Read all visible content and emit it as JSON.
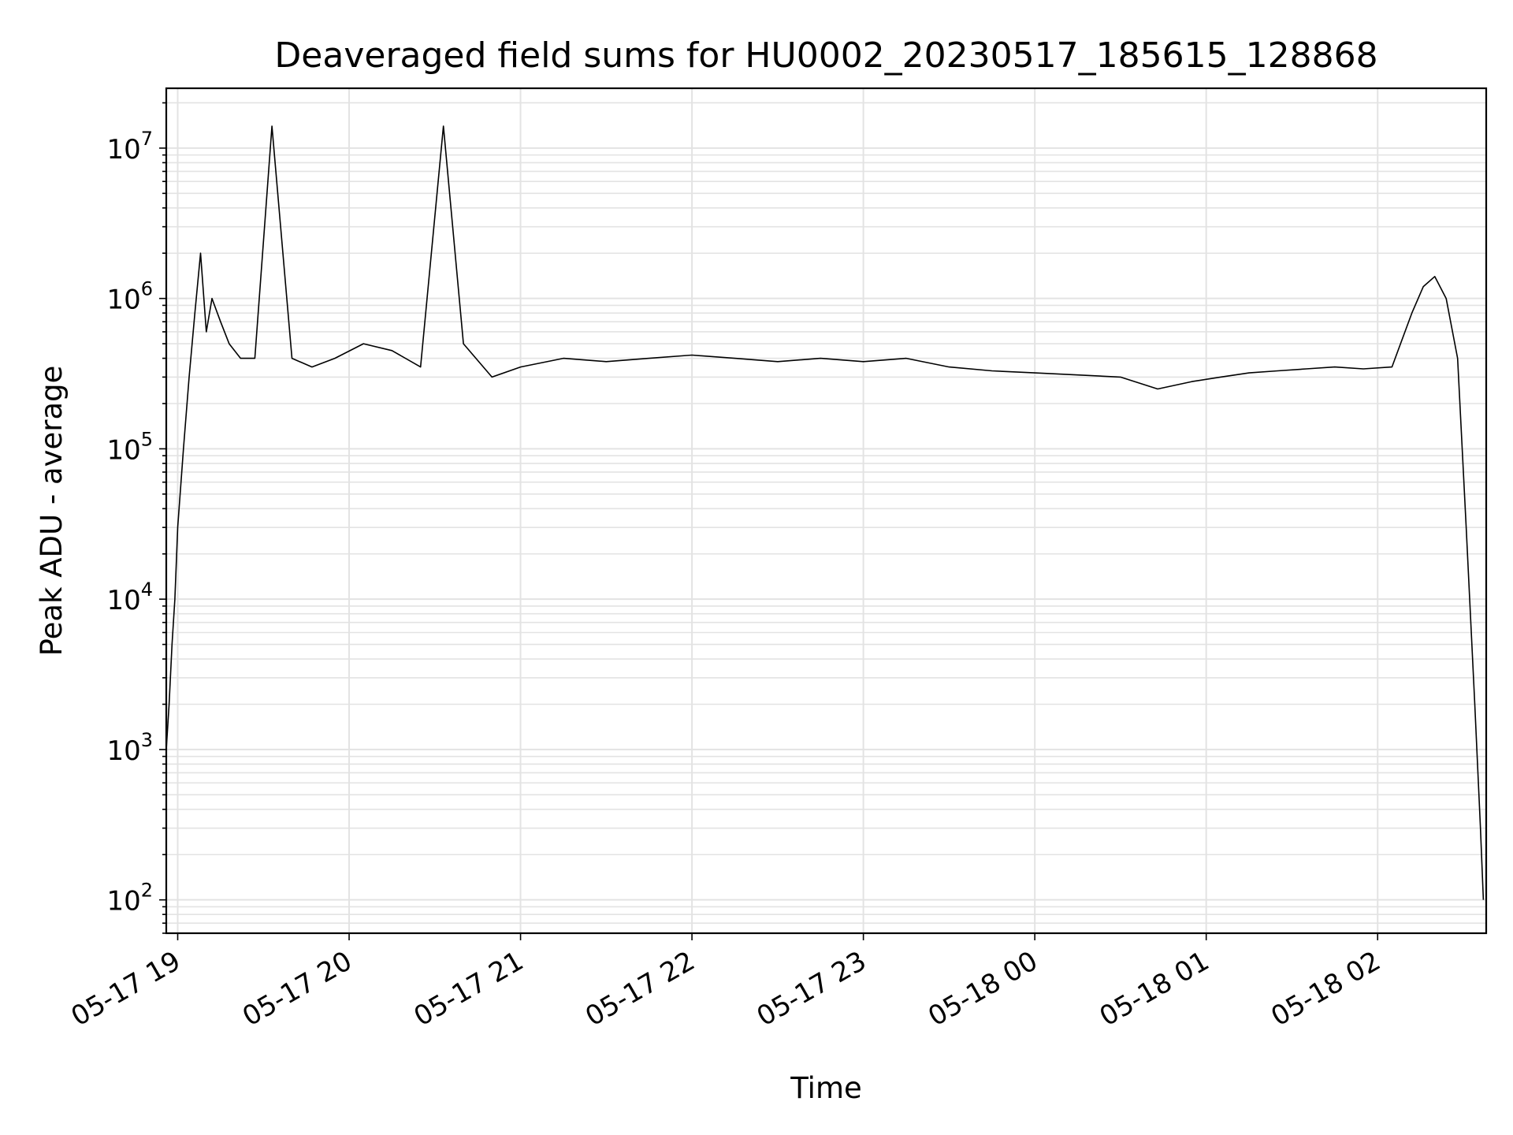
{
  "chart_data": {
    "type": "line",
    "title": "Deaveraged field sums for HU0002_20230517_185615_128868",
    "xlabel": "Time",
    "ylabel": "Peak ADU - average",
    "yscale": "log",
    "ylim": [
      60,
      25000000
    ],
    "xlim": [
      "2023-05-17 18:56",
      "2023-05-18 02:38"
    ],
    "x_tick_labels": [
      "05-17 19",
      "05-17 20",
      "05-17 21",
      "05-17 22",
      "05-17 23",
      "05-18 00",
      "05-18 01",
      "05-18 02"
    ],
    "x_ticks": [
      "2023-05-17 19:00",
      "2023-05-17 20:00",
      "2023-05-17 21:00",
      "2023-05-17 22:00",
      "2023-05-17 23:00",
      "2023-05-18 00:00",
      "2023-05-18 01:00",
      "2023-05-18 02:00"
    ],
    "y_ticks": [
      100,
      1000,
      10000,
      100000,
      1000000,
      10000000
    ],
    "y_tick_labels": [
      {
        "base": "10",
        "exp": "2"
      },
      {
        "base": "10",
        "exp": "3"
      },
      {
        "base": "10",
        "exp": "4"
      },
      {
        "base": "10",
        "exp": "5"
      },
      {
        "base": "10",
        "exp": "6"
      },
      {
        "base": "10",
        "exp": "7"
      }
    ],
    "grid": true,
    "line_color": "#000000",
    "grid_color": "#e3e3e3",
    "series": [
      {
        "x": [
          "2023-05-17 18:56",
          "2023-05-17 18:57",
          "2023-05-17 18:58",
          "2023-05-17 18:59",
          "2023-05-17 19:00",
          "2023-05-17 19:02",
          "2023-05-17 19:04",
          "2023-05-17 19:06",
          "2023-05-17 19:08",
          "2023-05-17 19:10",
          "2023-05-17 19:12",
          "2023-05-17 19:15",
          "2023-05-17 19:18",
          "2023-05-17 19:22",
          "2023-05-17 19:27",
          "2023-05-17 19:33",
          "2023-05-17 19:40",
          "2023-05-17 19:47",
          "2023-05-17 19:55",
          "2023-05-17 20:05",
          "2023-05-17 20:15",
          "2023-05-17 20:25",
          "2023-05-17 20:33",
          "2023-05-17 20:40",
          "2023-05-17 20:50",
          "2023-05-17 21:00",
          "2023-05-17 21:15",
          "2023-05-17 21:30",
          "2023-05-17 21:45",
          "2023-05-17 22:00",
          "2023-05-17 22:15",
          "2023-05-17 22:30",
          "2023-05-17 22:45",
          "2023-05-17 23:00",
          "2023-05-17 23:15",
          "2023-05-17 23:30",
          "2023-05-17 23:45",
          "2023-05-18 00:00",
          "2023-05-18 00:15",
          "2023-05-18 00:30",
          "2023-05-18 00:43",
          "2023-05-18 00:55",
          "2023-05-18 01:05",
          "2023-05-18 01:15",
          "2023-05-18 01:25",
          "2023-05-18 01:35",
          "2023-05-18 01:45",
          "2023-05-18 01:55",
          "2023-05-18 02:05",
          "2023-05-18 02:12",
          "2023-05-18 02:16",
          "2023-05-18 02:20",
          "2023-05-18 02:24",
          "2023-05-18 02:28",
          "2023-05-18 02:31",
          "2023-05-18 02:34",
          "2023-05-18 02:36",
          "2023-05-18 02:37"
        ],
        "values": [
          1000,
          2000,
          5000,
          10000,
          30000,
          100000,
          300000,
          800000,
          2000000,
          600000,
          1000000,
          700000,
          500000,
          400000,
          400000,
          14000000,
          400000,
          350000,
          400000,
          500000,
          450000,
          350000,
          14000000,
          500000,
          300000,
          350000,
          400000,
          380000,
          400000,
          420000,
          400000,
          380000,
          400000,
          380000,
          400000,
          350000,
          330000,
          320000,
          310000,
          300000,
          250000,
          280000,
          300000,
          320000,
          330000,
          340000,
          350000,
          340000,
          350000,
          800000,
          1200000,
          1400000,
          1000000,
          400000,
          30000,
          2000,
          300,
          100
        ]
      }
    ]
  }
}
